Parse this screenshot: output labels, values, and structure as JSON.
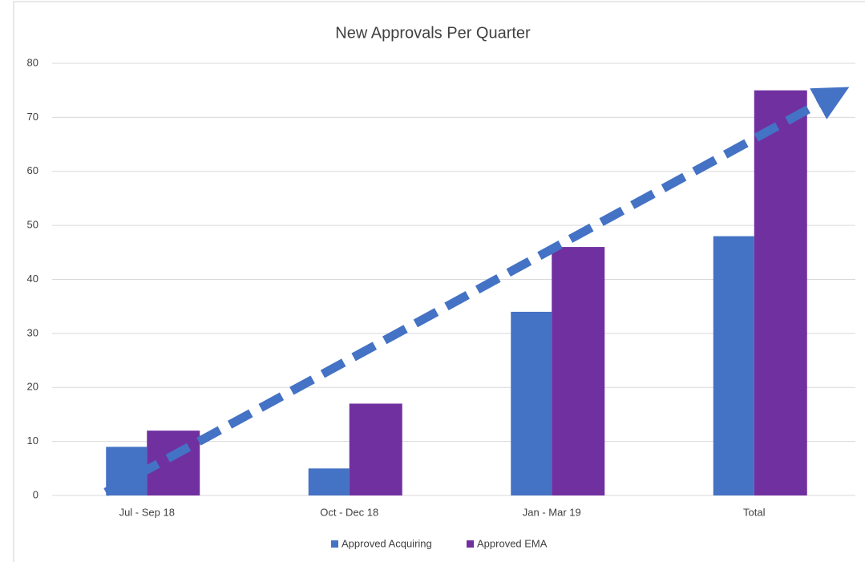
{
  "chart_data": {
    "type": "bar",
    "title": "New Approvals Per Quarter",
    "categories": [
      "Jul - Sep 18",
      "Oct - Dec 18",
      "Jan - Mar 19",
      "Total"
    ],
    "series": [
      {
        "name": "Approved Acquiring",
        "color": "#4472c4",
        "values": [
          9,
          5,
          34,
          48
        ]
      },
      {
        "name": "Approved EMA",
        "color": "#7030a0",
        "values": [
          12,
          17,
          46,
          75
        ]
      }
    ],
    "ylim": [
      0,
      80
    ],
    "yticks": [
      0,
      10,
      20,
      30,
      40,
      50,
      60,
      70,
      80
    ],
    "grid": true,
    "legend": "bottom"
  }
}
